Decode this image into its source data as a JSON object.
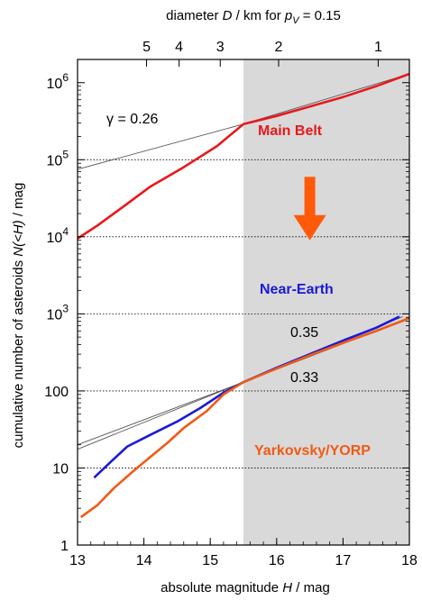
{
  "chart_data": {
    "type": "line",
    "xlabel_text": "absolute magnitude",
    "xlabel_var": "H",
    "xlabel_unit": " / mag",
    "ylabel_text": "cumulative number of asteroids",
    "ylabel_var": "N(<H)",
    "ylabel_unit": " / mag",
    "top_axis_text": "diameter",
    "top_axis_var": "D",
    "top_axis_unit": " / km  for",
    "top_axis_pv": "p",
    "top_axis_pv_sub": "V",
    "top_axis_pv_value": " = 0.15",
    "xlim": [
      13,
      18
    ],
    "ylim": [
      1,
      2000000
    ],
    "yscale": "log",
    "x_ticks": [
      13,
      14,
      15,
      16,
      17,
      18
    ],
    "x_tick_labels": [
      "13",
      "14",
      "15",
      "16",
      "17",
      "18"
    ],
    "y_ticks": [
      1,
      10,
      100,
      1000,
      10000,
      100000,
      1000000
    ],
    "y_tick_labels": [
      {
        "base": "1",
        "exp": ""
      },
      {
        "base": "10",
        "exp": ""
      },
      {
        "base": "100",
        "exp": ""
      },
      {
        "base": "10",
        "exp": "3"
      },
      {
        "base": "10",
        "exp": "4"
      },
      {
        "base": "10",
        "exp": "5"
      },
      {
        "base": "10",
        "exp": "6"
      }
    ],
    "top_ticks": [
      {
        "label": "5",
        "H": 14.04
      },
      {
        "label": "4",
        "H": 14.53
      },
      {
        "label": "3",
        "H": 15.15
      },
      {
        "label": "2",
        "H": 16.03
      },
      {
        "label": "1",
        "H": 17.53
      }
    ],
    "shaded_region": {
      "x_from": 15.5,
      "x_to": 18,
      "color": "#d9d9d9"
    },
    "dotted_gridlines_y": [
      10,
      100,
      1000,
      10000,
      100000
    ],
    "series": [
      {
        "name": "Main Belt",
        "color": "#e8181c",
        "points": [
          [
            13.0,
            9500
          ],
          [
            13.3,
            14000
          ],
          [
            13.7,
            25000
          ],
          [
            14.1,
            45000
          ],
          [
            14.6,
            80000
          ],
          [
            15.1,
            150000
          ],
          [
            15.5,
            290000
          ],
          [
            16.0,
            370000
          ],
          [
            16.5,
            490000
          ],
          [
            17.0,
            650000
          ],
          [
            17.5,
            900000
          ],
          [
            18.0,
            1300000
          ]
        ]
      },
      {
        "name": "Near-Earth",
        "color": "#1a1ad6",
        "points": [
          [
            13.25,
            7.5
          ],
          [
            13.5,
            12
          ],
          [
            13.75,
            19
          ],
          [
            14.1,
            27
          ],
          [
            14.5,
            40
          ],
          [
            14.85,
            60
          ],
          [
            15.2,
            95
          ],
          [
            15.5,
            130
          ],
          [
            16.0,
            200
          ],
          [
            16.5,
            300
          ],
          [
            17.0,
            450
          ],
          [
            17.5,
            660
          ],
          [
            17.85,
            920
          ]
        ]
      },
      {
        "name": "Yarkovsky/YORP",
        "color": "#f05a14",
        "points": [
          [
            13.05,
            2.3
          ],
          [
            13.3,
            3.3
          ],
          [
            13.55,
            5.5
          ],
          [
            13.8,
            8.5
          ],
          [
            14.1,
            14
          ],
          [
            14.35,
            21
          ],
          [
            14.6,
            33
          ],
          [
            14.95,
            55
          ],
          [
            15.2,
            90
          ],
          [
            15.5,
            130
          ],
          [
            16.0,
            195
          ],
          [
            16.5,
            290
          ],
          [
            17.0,
            420
          ],
          [
            17.5,
            600
          ],
          [
            18.0,
            880
          ]
        ]
      }
    ],
    "fits": [
      {
        "label": "γ = 0.26",
        "color": "#555555",
        "points": [
          [
            13.0,
            75000
          ],
          [
            15.5,
            290000
          ],
          [
            18.0,
            1300000
          ]
        ]
      },
      {
        "label": "0.35",
        "color": "#555555",
        "points": [
          [
            13.0,
            20
          ],
          [
            15.5,
            130
          ],
          [
            17.9,
            920
          ]
        ]
      },
      {
        "label": "0.33",
        "color": "#555555",
        "points": [
          [
            13.0,
            17.5
          ],
          [
            15.5,
            130
          ],
          [
            18.0,
            880
          ]
        ]
      }
    ],
    "arrow": {
      "color": "#ff5a0a",
      "H": 16.5,
      "from": 60000,
      "to": 9000
    }
  }
}
